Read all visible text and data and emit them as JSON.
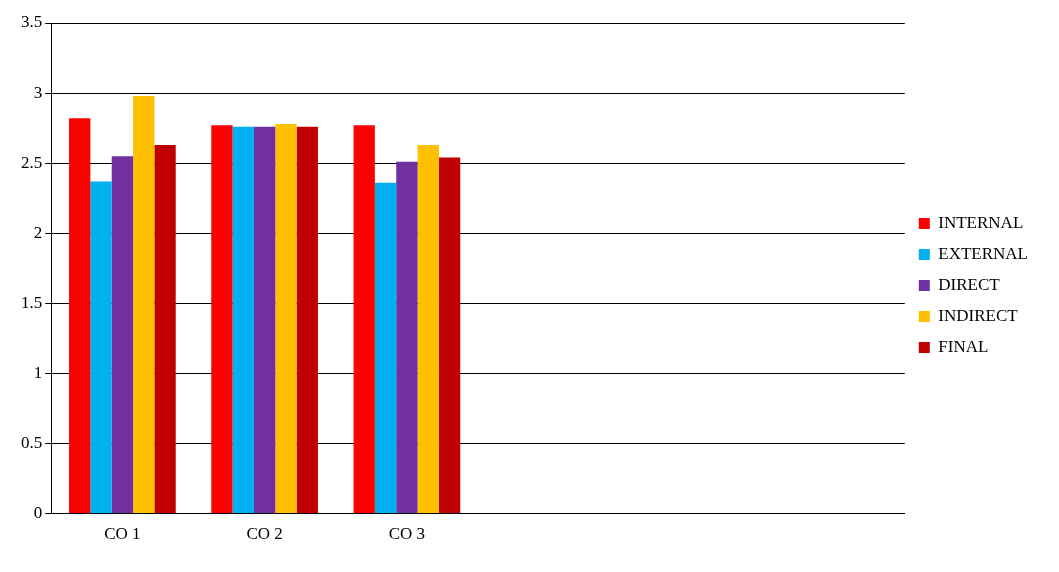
{
  "chart_data": {
    "type": "bar",
    "categories": [
      "CO 1",
      "CO 2",
      "CO 3",
      null,
      null,
      null
    ],
    "series": [
      {
        "name": "INTERNAL",
        "color": "#ff0000",
        "values": [
          2.82,
          2.77,
          2.77,
          null,
          null,
          null
        ]
      },
      {
        "name": "EXTERNAL",
        "color": "#00b0f0",
        "values": [
          2.37,
          2.76,
          2.36,
          null,
          null,
          null
        ]
      },
      {
        "name": "DIRECT",
        "color": "#7030a0",
        "values": [
          2.55,
          2.76,
          2.51,
          null,
          null,
          null
        ]
      },
      {
        "name": "INDIRECT",
        "color": "#ffc000",
        "values": [
          2.98,
          2.78,
          2.63,
          null,
          null,
          null
        ]
      },
      {
        "name": "FINAL",
        "color": "#c00000",
        "values": [
          2.63,
          2.76,
          2.54,
          null,
          null,
          null
        ]
      }
    ],
    "ylim": [
      0,
      3.5
    ],
    "yticks": [
      0,
      0.5,
      1,
      1.5,
      2,
      2.5,
      3,
      3.5
    ],
    "grid": "y",
    "legend": "right"
  }
}
